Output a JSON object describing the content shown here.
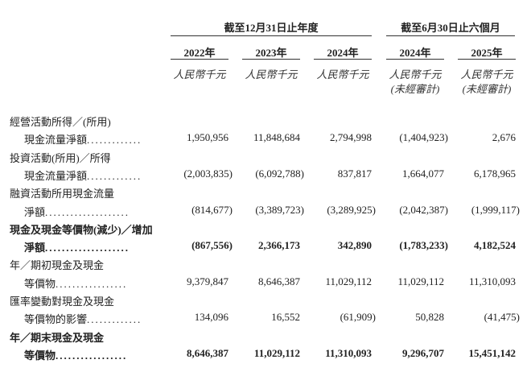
{
  "header": {
    "group1": "截至12月31日止年度",
    "group2": "截至6月30日止六個月",
    "years": [
      "2022年",
      "2023年",
      "2024年",
      "2024年",
      "2025年"
    ],
    "units": [
      "人民幣千元",
      "人民幣千元",
      "人民幣千元",
      "人民幣千元",
      "人民幣千元"
    ],
    "unaudited": [
      "(未經審計)",
      "(未經審計)"
    ]
  },
  "rows": [
    {
      "line1": "經營活動所得／(所用)",
      "line2": "現金流量淨額",
      "dots": ".............",
      "bold": false,
      "values": [
        "1,950,956",
        "11,848,684",
        "2,794,998",
        "(1,404,923)",
        "2,676"
      ]
    },
    {
      "line1": "投資活動(所用)／所得",
      "line2": "現金流量淨額",
      "dots": ".............",
      "bold": false,
      "values": [
        "(2,003,835)",
        "(6,092,788)",
        "837,817",
        "1,664,077",
        "6,178,965"
      ]
    },
    {
      "line1": "融資活動所用現金流量",
      "line2": "淨額",
      "dots": "....................",
      "bold": false,
      "values": [
        "(814,677)",
        "(3,389,723)",
        "(3,289,925)",
        "(2,042,387)",
        "(1,999,117)"
      ]
    },
    {
      "line1": "現金及現金等價物(減少)／增加",
      "line2": "淨額",
      "dots": "....................",
      "bold": true,
      "values": [
        "(867,556)",
        "2,366,173",
        "342,890",
        "(1,783,233)",
        "4,182,524"
      ]
    },
    {
      "line1": "年／期初現金及現金",
      "line2": "等價物",
      "dots": ".................",
      "bold": false,
      "values": [
        "9,379,847",
        "8,646,387",
        "11,029,112",
        "11,029,112",
        "11,310,093"
      ]
    },
    {
      "line1": "匯率變動對現金及現金",
      "line2": "等價物的影響",
      "dots": ".............",
      "bold": false,
      "values": [
        "134,096",
        "16,552",
        "(61,909)",
        "50,828",
        "(41,475)"
      ]
    },
    {
      "line1": "年／期末現金及現金",
      "line2": "等價物",
      "dots": ".................",
      "bold": true,
      "values": [
        "8,646,387",
        "11,029,112",
        "11,310,093",
        "9,296,707",
        "15,451,142"
      ]
    }
  ]
}
